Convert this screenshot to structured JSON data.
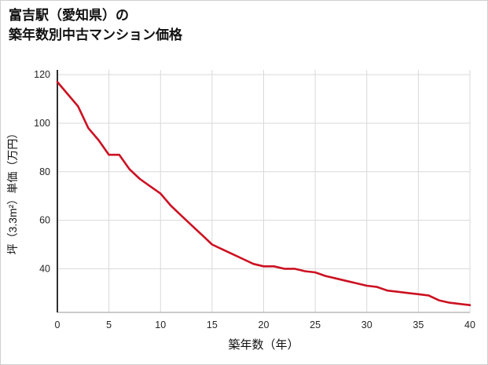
{
  "page": {
    "title_line1": "富吉駅（愛知県）の",
    "title_line2": "築年数別中古マンション価格"
  },
  "chart_data": {
    "type": "line",
    "title": "富吉駅（愛知県）の築年数別中古マンション価格",
    "xlabel": "築年数（年）",
    "ylabel": "坪（3.3m²）単価（万円）",
    "x": [
      0,
      1,
      2,
      3,
      4,
      5,
      6,
      7,
      8,
      9,
      10,
      11,
      12,
      13,
      14,
      15,
      16,
      17,
      18,
      19,
      20,
      21,
      22,
      23,
      24,
      25,
      26,
      27,
      28,
      29,
      30,
      31,
      32,
      33,
      34,
      35,
      36,
      37,
      38,
      39,
      40
    ],
    "values": [
      117,
      112,
      107,
      98,
      93,
      87,
      87,
      81,
      77,
      74,
      71,
      66,
      62,
      58,
      54,
      50,
      48,
      46,
      44,
      42,
      41,
      41,
      40,
      40,
      39,
      38.5,
      37,
      36,
      35,
      34,
      33,
      32.5,
      31,
      30.5,
      30,
      29.5,
      29,
      27,
      26,
      25.5,
      25
    ],
    "xlim": [
      0,
      40
    ],
    "ylim": [
      22,
      122
    ],
    "xticks": [
      0,
      5,
      10,
      15,
      20,
      25,
      30,
      35,
      40
    ],
    "yticks": [
      40,
      60,
      80,
      100,
      120
    ],
    "grid": true,
    "legend_position": "none",
    "colors": {
      "line": "#cc1122",
      "grid": "#d9d9d9",
      "left_spine": "#1a1a1a",
      "bottom_spine": "#9a9a9a",
      "tick_text": "#262626",
      "label_text": "#111111"
    },
    "line_width": 2.6
  }
}
